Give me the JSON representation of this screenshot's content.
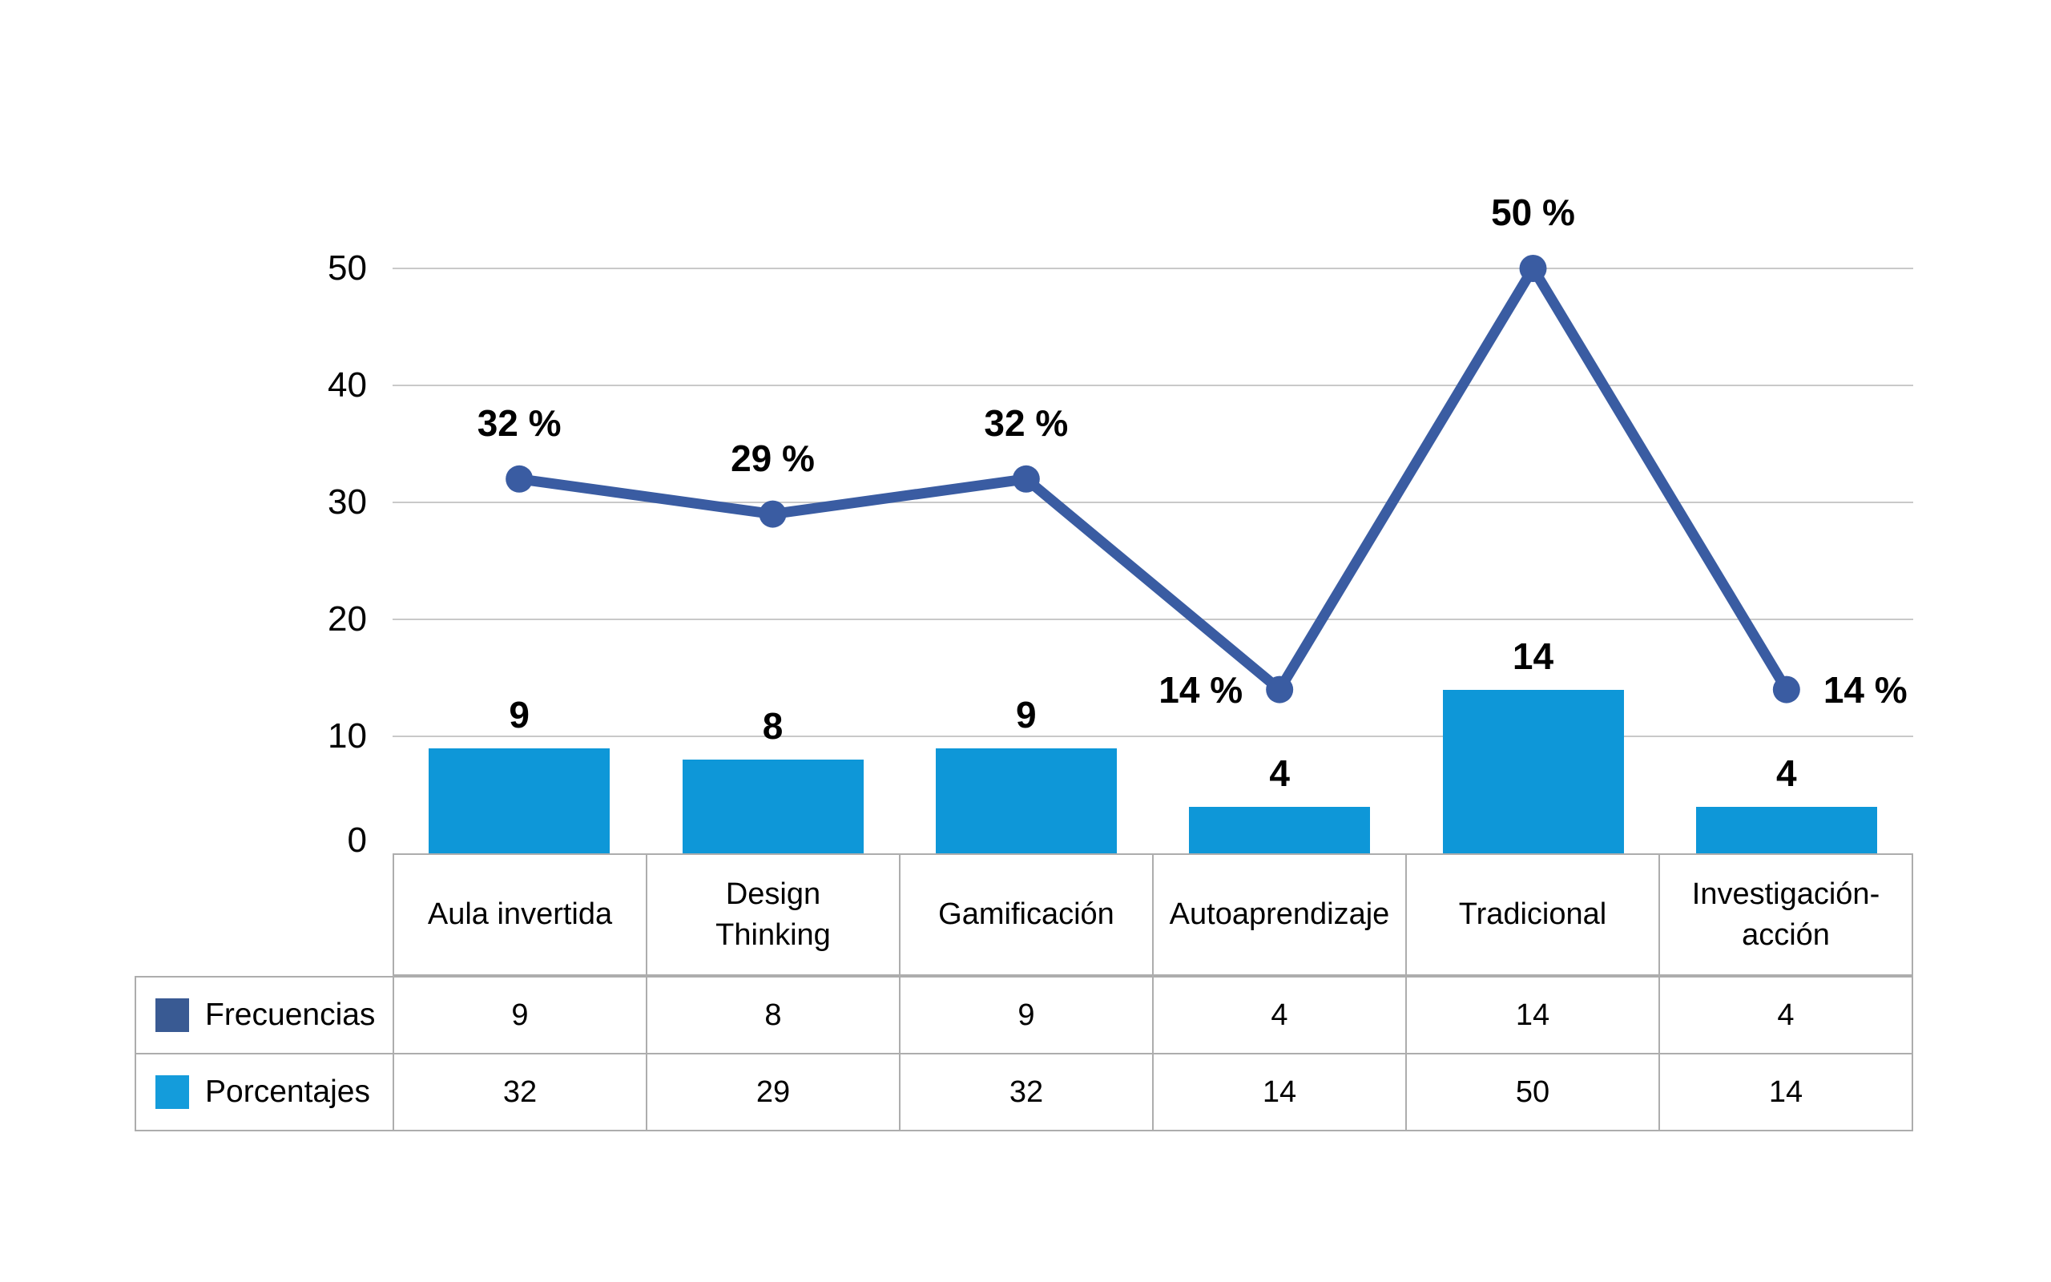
{
  "chart_data": {
    "type": "combo-bar-line",
    "title": "",
    "categories": [
      "Aula invertida",
      "Design\nThinking",
      "Gamificación",
      "Autoaprendizaje",
      "Tradicional",
      "Investigación-\nacción"
    ],
    "y_ticks": [
      0,
      10,
      20,
      30,
      40,
      50
    ],
    "ylim": [
      0,
      50
    ],
    "grid": true,
    "series": [
      {
        "name": "Frecuencias",
        "type": "bar",
        "color": "#0E97D8",
        "values": [
          9,
          8,
          9,
          4,
          14,
          4
        ],
        "data_labels": [
          "9",
          "8",
          "9",
          "4",
          "14",
          "4"
        ]
      },
      {
        "name": "Porcentajes",
        "type": "line",
        "color": "#3A5CA2",
        "values": [
          32,
          29,
          32,
          14,
          50,
          14
        ],
        "data_labels": [
          "32 %",
          "29 %",
          "32 %",
          "14 %",
          "50 %",
          "14 %"
        ],
        "label_positions": [
          "above",
          "above",
          "above",
          "left",
          "above",
          "right"
        ]
      }
    ],
    "table": {
      "legend_rows": [
        {
          "label": "Frecuencias",
          "swatch_color": "#395A93",
          "values": [
            "9",
            "8",
            "9",
            "4",
            "14",
            "4"
          ]
        },
        {
          "label": "Porcentajes",
          "swatch_color": "#149CDB",
          "values": [
            "32",
            "29",
            "32",
            "14",
            "50",
            "14"
          ]
        }
      ]
    },
    "colors": {
      "gridline": "#C9C9C9",
      "table_border": "#ADADAD",
      "text": "#000000",
      "background": "#FFFFFF"
    }
  }
}
